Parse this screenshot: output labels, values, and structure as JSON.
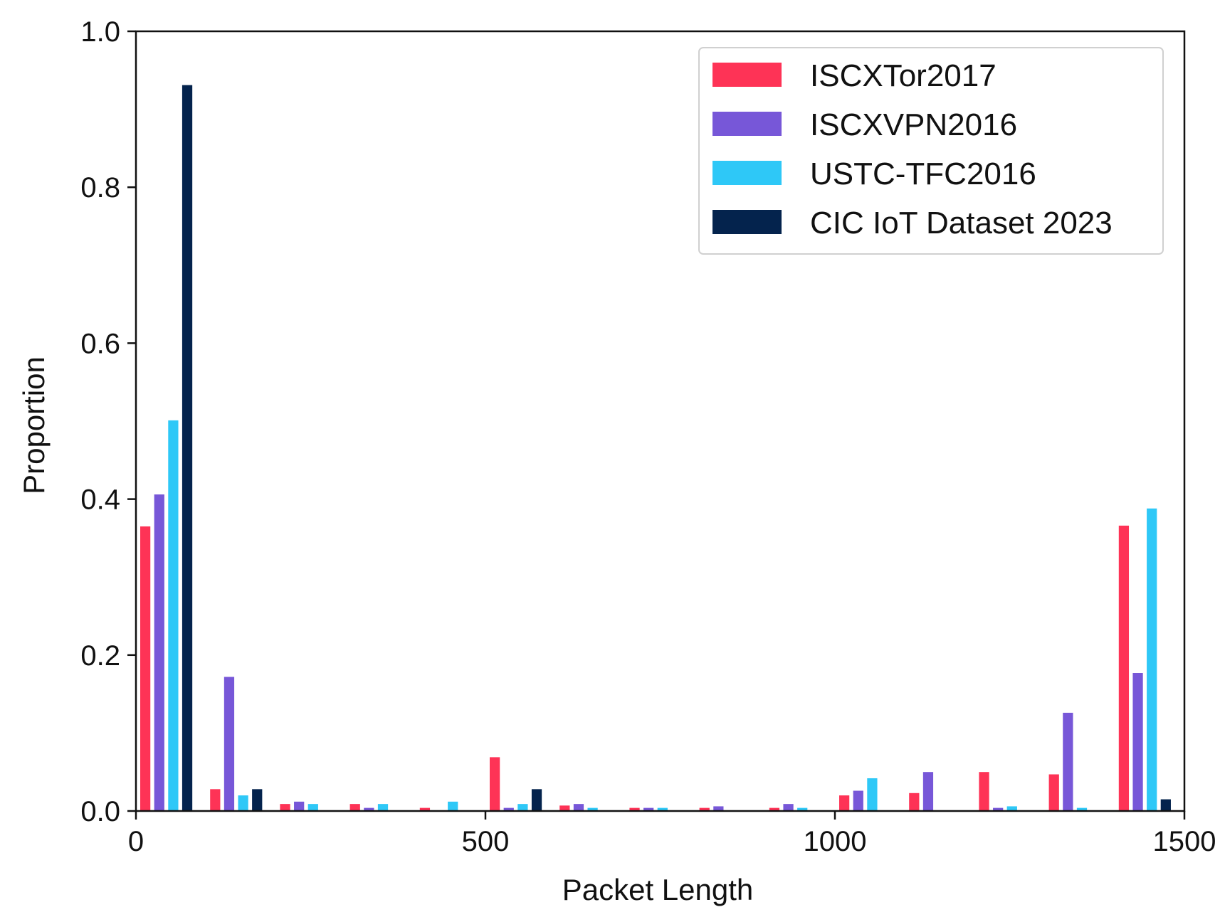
{
  "chart_data": {
    "type": "bar",
    "xlabel": "Packet Length",
    "ylabel": "Proportion",
    "xlim": [
      0,
      1500
    ],
    "ylim": [
      0,
      1.0
    ],
    "xticks": [
      0,
      500,
      1000,
      1500
    ],
    "xtick_labels": [
      "0",
      "500",
      "1000",
      "1500"
    ],
    "yticks": [
      0.0,
      0.2,
      0.4,
      0.6,
      0.8,
      1.0
    ],
    "ytick_labels": [
      "0.0",
      "0.2",
      "0.4",
      "0.6",
      "0.8",
      "1.0"
    ],
    "grid": false,
    "legend_position": "top-right",
    "bins": [
      0,
      100,
      200,
      300,
      400,
      500,
      600,
      700,
      800,
      900,
      1000,
      1100,
      1200,
      1300,
      1400
    ],
    "bin_width": 100,
    "series": [
      {
        "name": "ISCXTor2017",
        "color": "#fe3356",
        "values": [
          0.365,
          0.028,
          0.009,
          0.009,
          0.004,
          0.069,
          0.007,
          0.004,
          0.004,
          0.004,
          0.02,
          0.023,
          0.05,
          0.047,
          0.366
        ]
      },
      {
        "name": "ISCXVPN2016",
        "color": "#7757d8",
        "values": [
          0.406,
          0.172,
          0.012,
          0.004,
          0.0,
          0.004,
          0.009,
          0.004,
          0.006,
          0.009,
          0.026,
          0.05,
          0.004,
          0.126,
          0.177
        ]
      },
      {
        "name": "USTC-TFC2016",
        "color": "#2ec8f7",
        "values": [
          0.501,
          0.02,
          0.009,
          0.009,
          0.012,
          0.009,
          0.004,
          0.004,
          0.0,
          0.004,
          0.042,
          0.0,
          0.006,
          0.004,
          0.388
        ]
      },
      {
        "name": "CIC IoT Dataset 2023",
        "color": "#04234d",
        "values": [
          0.931,
          0.028,
          0.0,
          0.0,
          0.0,
          0.028,
          0.0,
          0.0,
          0.0,
          0.0,
          0.0,
          0.0,
          0.0,
          0.0,
          0.015
        ]
      }
    ]
  }
}
